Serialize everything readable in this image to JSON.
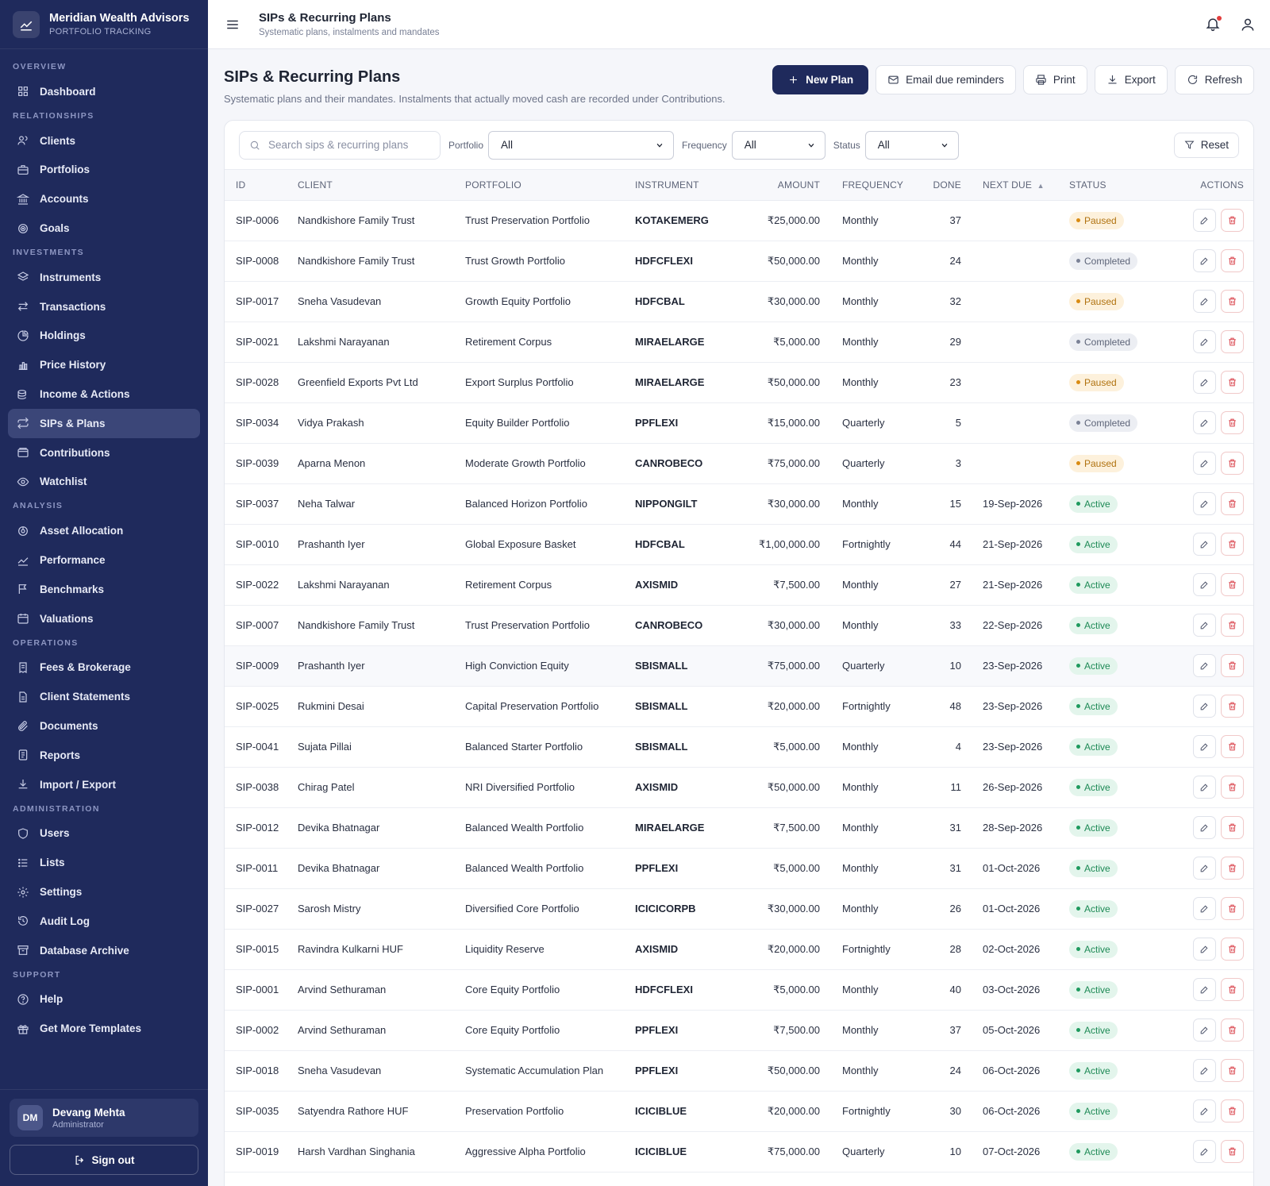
{
  "brand": {
    "name": "Meridian Wealth Advisors",
    "subtitle": "PORTFOLIO TRACKING"
  },
  "nav": [
    {
      "section": "OVERVIEW",
      "items": [
        {
          "label": "Dashboard",
          "icon": "grid-icon"
        }
      ]
    },
    {
      "section": "RELATIONSHIPS",
      "items": [
        {
          "label": "Clients",
          "icon": "users-icon"
        },
        {
          "label": "Portfolios",
          "icon": "briefcase-icon"
        },
        {
          "label": "Accounts",
          "icon": "bank-icon"
        },
        {
          "label": "Goals",
          "icon": "target-icon"
        }
      ]
    },
    {
      "section": "INVESTMENTS",
      "items": [
        {
          "label": "Instruments",
          "icon": "layers-icon"
        },
        {
          "label": "Transactions",
          "icon": "swap-icon"
        },
        {
          "label": "Holdings",
          "icon": "pie-icon"
        },
        {
          "label": "Price History",
          "icon": "bar-chart-icon"
        },
        {
          "label": "Income & Actions",
          "icon": "coins-icon"
        },
        {
          "label": "SIPs & Plans",
          "icon": "repeat-icon",
          "active": true
        },
        {
          "label": "Contributions",
          "icon": "wallet-icon"
        },
        {
          "label": "Watchlist",
          "icon": "eye-icon"
        }
      ]
    },
    {
      "section": "ANALYSIS",
      "items": [
        {
          "label": "Asset Allocation",
          "icon": "donut-icon"
        },
        {
          "label": "Performance",
          "icon": "trend-icon"
        },
        {
          "label": "Benchmarks",
          "icon": "flag-icon"
        },
        {
          "label": "Valuations",
          "icon": "calendar-icon"
        }
      ]
    },
    {
      "section": "OPERATIONS",
      "items": [
        {
          "label": "Fees & Brokerage",
          "icon": "receipt-icon"
        },
        {
          "label": "Client Statements",
          "icon": "file-icon"
        },
        {
          "label": "Documents",
          "icon": "paperclip-icon"
        },
        {
          "label": "Reports",
          "icon": "report-icon"
        },
        {
          "label": "Import / Export",
          "icon": "download-icon"
        }
      ]
    },
    {
      "section": "ADMINISTRATION",
      "items": [
        {
          "label": "Users",
          "icon": "shield-icon"
        },
        {
          "label": "Lists",
          "icon": "list-icon"
        },
        {
          "label": "Settings",
          "icon": "gear-icon"
        },
        {
          "label": "Audit Log",
          "icon": "history-icon"
        },
        {
          "label": "Database Archive",
          "icon": "archive-icon"
        }
      ]
    },
    {
      "section": "SUPPORT",
      "items": [
        {
          "label": "Help",
          "icon": "help-icon"
        },
        {
          "label": "Get More Templates",
          "icon": "gift-icon"
        }
      ]
    }
  ],
  "user": {
    "initials": "DM",
    "name": "Devang Mehta",
    "role": "Administrator",
    "signout": "Sign out"
  },
  "topbar": {
    "title": "SIPs & Recurring Plans",
    "subtitle": "Systematic plans, instalments and mandates"
  },
  "page": {
    "title": "SIPs & Recurring Plans",
    "subtitle": "Systematic plans and their mandates. Instalments that actually moved cash are recorded under Contributions.",
    "actions": {
      "new_plan": "New Plan",
      "email": "Email due reminders",
      "print": "Print",
      "export": "Export",
      "refresh": "Refresh"
    }
  },
  "filters": {
    "search_placeholder": "Search sips & recurring plans",
    "portfolio_label": "Portfolio",
    "portfolio_value": "All",
    "frequency_label": "Frequency",
    "frequency_value": "All",
    "status_label": "Status",
    "status_value": "All",
    "reset": "Reset"
  },
  "table": {
    "columns": [
      "ID",
      "CLIENT",
      "PORTFOLIO",
      "INSTRUMENT",
      "AMOUNT",
      "FREQUENCY",
      "DONE",
      "NEXT DUE",
      "STATUS",
      "ACTIONS"
    ],
    "sort_indicator": "▲",
    "rows": [
      {
        "id": "SIP-0006",
        "client": "Nandkishore Family Trust",
        "portfolio": "Trust Preservation Portfolio",
        "instrument": "KOTAKEMERG",
        "amount": "₹25,000.00",
        "frequency": "Monthly",
        "done": "37",
        "next_due": "",
        "status": "Paused"
      },
      {
        "id": "SIP-0008",
        "client": "Nandkishore Family Trust",
        "portfolio": "Trust Growth Portfolio",
        "instrument": "HDFCFLEXI",
        "amount": "₹50,000.00",
        "frequency": "Monthly",
        "done": "24",
        "next_due": "",
        "status": "Completed"
      },
      {
        "id": "SIP-0017",
        "client": "Sneha Vasudevan",
        "portfolio": "Growth Equity Portfolio",
        "instrument": "HDFCBAL",
        "amount": "₹30,000.00",
        "frequency": "Monthly",
        "done": "32",
        "next_due": "",
        "status": "Paused"
      },
      {
        "id": "SIP-0021",
        "client": "Lakshmi Narayanan",
        "portfolio": "Retirement Corpus",
        "instrument": "MIRAELARGE",
        "amount": "₹5,000.00",
        "frequency": "Monthly",
        "done": "29",
        "next_due": "",
        "status": "Completed"
      },
      {
        "id": "SIP-0028",
        "client": "Greenfield Exports Pvt Ltd",
        "portfolio": "Export Surplus Portfolio",
        "instrument": "MIRAELARGE",
        "amount": "₹50,000.00",
        "frequency": "Monthly",
        "done": "23",
        "next_due": "",
        "status": "Paused"
      },
      {
        "id": "SIP-0034",
        "client": "Vidya Prakash",
        "portfolio": "Equity Builder Portfolio",
        "instrument": "PPFLEXI",
        "amount": "₹15,000.00",
        "frequency": "Quarterly",
        "done": "5",
        "next_due": "",
        "status": "Completed"
      },
      {
        "id": "SIP-0039",
        "client": "Aparna Menon",
        "portfolio": "Moderate Growth Portfolio",
        "instrument": "CANROBECO",
        "amount": "₹75,000.00",
        "frequency": "Quarterly",
        "done": "3",
        "next_due": "",
        "status": "Paused"
      },
      {
        "id": "SIP-0037",
        "client": "Neha Talwar",
        "portfolio": "Balanced Horizon Portfolio",
        "instrument": "NIPPONGILT",
        "amount": "₹30,000.00",
        "frequency": "Monthly",
        "done": "15",
        "next_due": "19-Sep-2026",
        "status": "Active"
      },
      {
        "id": "SIP-0010",
        "client": "Prashanth Iyer",
        "portfolio": "Global Exposure Basket",
        "instrument": "HDFCBAL",
        "amount": "₹1,00,000.00",
        "frequency": "Fortnightly",
        "done": "44",
        "next_due": "21-Sep-2026",
        "status": "Active"
      },
      {
        "id": "SIP-0022",
        "client": "Lakshmi Narayanan",
        "portfolio": "Retirement Corpus",
        "instrument": "AXISMID",
        "amount": "₹7,500.00",
        "frequency": "Monthly",
        "done": "27",
        "next_due": "21-Sep-2026",
        "status": "Active"
      },
      {
        "id": "SIP-0007",
        "client": "Nandkishore Family Trust",
        "portfolio": "Trust Preservation Portfolio",
        "instrument": "CANROBECO",
        "amount": "₹30,000.00",
        "frequency": "Monthly",
        "done": "33",
        "next_due": "22-Sep-2026",
        "status": "Active"
      },
      {
        "id": "SIP-0009",
        "client": "Prashanth Iyer",
        "portfolio": "High Conviction Equity",
        "instrument": "SBISMALL",
        "amount": "₹75,000.00",
        "frequency": "Quarterly",
        "done": "10",
        "next_due": "23-Sep-2026",
        "status": "Active"
      },
      {
        "id": "SIP-0025",
        "client": "Rukmini Desai",
        "portfolio": "Capital Preservation Portfolio",
        "instrument": "SBISMALL",
        "amount": "₹20,000.00",
        "frequency": "Fortnightly",
        "done": "48",
        "next_due": "23-Sep-2026",
        "status": "Active"
      },
      {
        "id": "SIP-0041",
        "client": "Sujata Pillai",
        "portfolio": "Balanced Starter Portfolio",
        "instrument": "SBISMALL",
        "amount": "₹5,000.00",
        "frequency": "Monthly",
        "done": "4",
        "next_due": "23-Sep-2026",
        "status": "Active"
      },
      {
        "id": "SIP-0038",
        "client": "Chirag Patel",
        "portfolio": "NRI Diversified Portfolio",
        "instrument": "AXISMID",
        "amount": "₹50,000.00",
        "frequency": "Monthly",
        "done": "11",
        "next_due": "26-Sep-2026",
        "status": "Active"
      },
      {
        "id": "SIP-0012",
        "client": "Devika Bhatnagar",
        "portfolio": "Balanced Wealth Portfolio",
        "instrument": "MIRAELARGE",
        "amount": "₹7,500.00",
        "frequency": "Monthly",
        "done": "31",
        "next_due": "28-Sep-2026",
        "status": "Active"
      },
      {
        "id": "SIP-0011",
        "client": "Devika Bhatnagar",
        "portfolio": "Balanced Wealth Portfolio",
        "instrument": "PPFLEXI",
        "amount": "₹5,000.00",
        "frequency": "Monthly",
        "done": "31",
        "next_due": "01-Oct-2026",
        "status": "Active"
      },
      {
        "id": "SIP-0027",
        "client": "Sarosh Mistry",
        "portfolio": "Diversified Core Portfolio",
        "instrument": "ICICICORPB",
        "amount": "₹30,000.00",
        "frequency": "Monthly",
        "done": "26",
        "next_due": "01-Oct-2026",
        "status": "Active"
      },
      {
        "id": "SIP-0015",
        "client": "Ravindra Kulkarni HUF",
        "portfolio": "Liquidity Reserve",
        "instrument": "AXISMID",
        "amount": "₹20,000.00",
        "frequency": "Fortnightly",
        "done": "28",
        "next_due": "02-Oct-2026",
        "status": "Active"
      },
      {
        "id": "SIP-0001",
        "client": "Arvind Sethuraman",
        "portfolio": "Core Equity Portfolio",
        "instrument": "HDFCFLEXI",
        "amount": "₹5,000.00",
        "frequency": "Monthly",
        "done": "40",
        "next_due": "03-Oct-2026",
        "status": "Active"
      },
      {
        "id": "SIP-0002",
        "client": "Arvind Sethuraman",
        "portfolio": "Core Equity Portfolio",
        "instrument": "PPFLEXI",
        "amount": "₹7,500.00",
        "frequency": "Monthly",
        "done": "37",
        "next_due": "05-Oct-2026",
        "status": "Active"
      },
      {
        "id": "SIP-0018",
        "client": "Sneha Vasudevan",
        "portfolio": "Systematic Accumulation Plan",
        "instrument": "PPFLEXI",
        "amount": "₹50,000.00",
        "frequency": "Monthly",
        "done": "24",
        "next_due": "06-Oct-2026",
        "status": "Active"
      },
      {
        "id": "SIP-0035",
        "client": "Satyendra Rathore HUF",
        "portfolio": "Preservation Portfolio",
        "instrument": "ICICIBLUE",
        "amount": "₹20,000.00",
        "frequency": "Fortnightly",
        "done": "30",
        "next_due": "06-Oct-2026",
        "status": "Active"
      },
      {
        "id": "SIP-0019",
        "client": "Harsh Vardhan Singhania",
        "portfolio": "Aggressive Alpha Portfolio",
        "instrument": "ICICIBLUE",
        "amount": "₹75,000.00",
        "frequency": "Quarterly",
        "done": "10",
        "next_due": "07-Oct-2026",
        "status": "Active"
      }
    ]
  }
}
